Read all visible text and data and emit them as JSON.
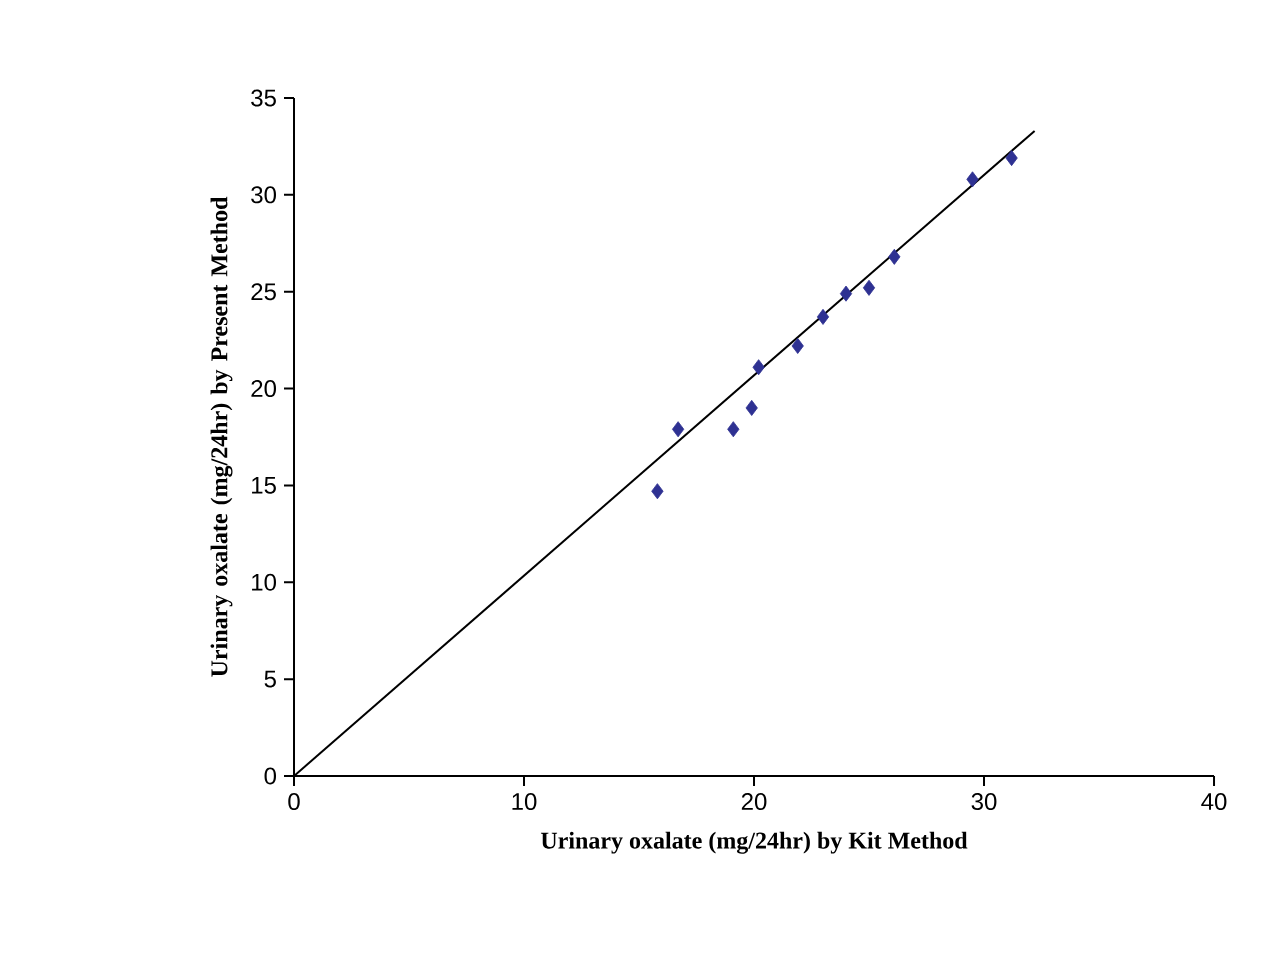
{
  "chart_data": {
    "type": "scatter",
    "xlabel": "Urinary oxalate (mg/24hr) by Kit Method",
    "ylabel": "Urinary oxalate (mg/24hr) by Present Method",
    "xlim": [
      0,
      40
    ],
    "ylim": [
      0,
      35
    ],
    "xticks": [
      0,
      10,
      20,
      30,
      40
    ],
    "yticks": [
      0,
      5,
      10,
      15,
      20,
      25,
      30,
      35
    ],
    "grid": false,
    "series": [
      {
        "marker": "diamond",
        "color": "#2e3192",
        "x": [
          15.8,
          16.7,
          19.1,
          19.9,
          20.2,
          21.9,
          23.0,
          24.0,
          25.0,
          26.1,
          29.5,
          31.2
        ],
        "values": [
          14.7,
          17.9,
          17.9,
          19.0,
          21.1,
          22.2,
          23.7,
          24.9,
          25.2,
          26.8,
          30.8,
          31.9
        ]
      },
      {
        "type": "line",
        "color": "#000000",
        "x": [
          0,
          32.2
        ],
        "values": [
          0,
          33.3
        ],
        "line_style": "solid"
      }
    ]
  }
}
